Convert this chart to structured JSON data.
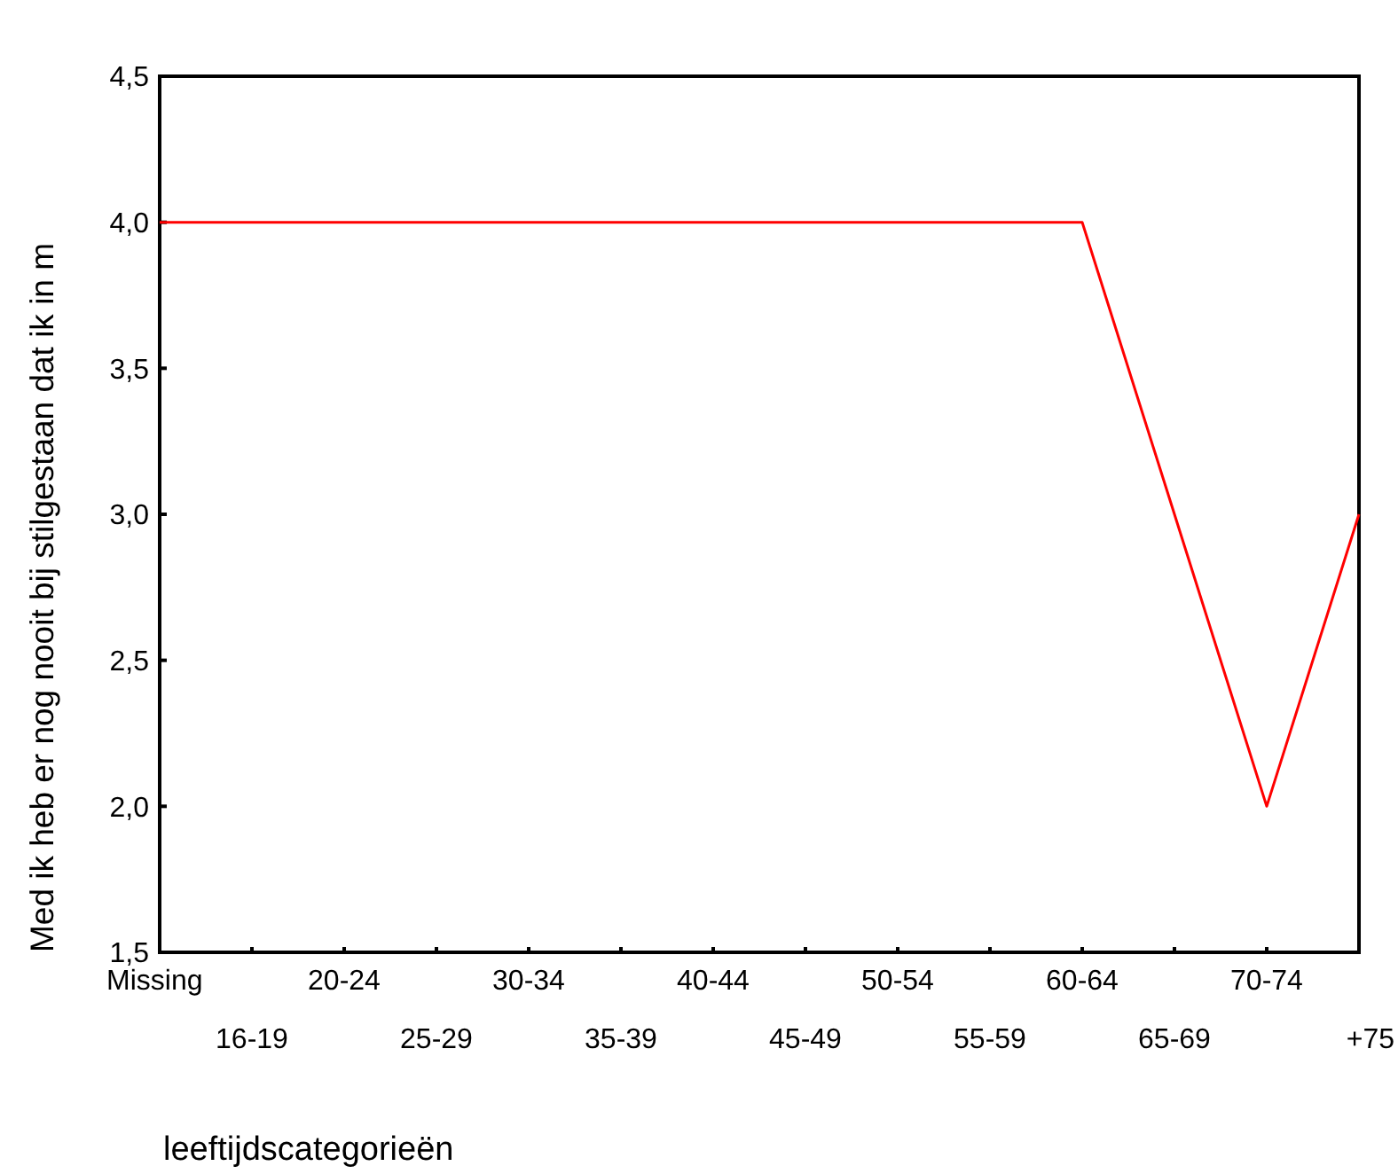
{
  "chart_data": {
    "type": "line",
    "xlabel": "leeftijdscategorieën",
    "ylabel": "Med ik heb er nog nooit bij stilgestaan dat ik in m",
    "categories": [
      "Missing",
      "16-19",
      "20-24",
      "25-29",
      "30-34",
      "35-39",
      "40-44",
      "45-49",
      "50-54",
      "55-59",
      "60-64",
      "65-69",
      "70-74",
      "+75"
    ],
    "series": [
      {
        "color": "#ff0000",
        "values": [
          4,
          4,
          4,
          4,
          4,
          4,
          4,
          4,
          4,
          4,
          4,
          3,
          2,
          3
        ]
      }
    ],
    "ylim": [
      1.5,
      4.5
    ],
    "yticks": [
      {
        "value": 1.5,
        "label": "1,5"
      },
      {
        "value": 2,
        "label": "2,0"
      },
      {
        "value": 2.5,
        "label": "2,5"
      },
      {
        "value": 3,
        "label": "3,0"
      },
      {
        "value": 3.5,
        "label": "3,5"
      },
      {
        "value": 4,
        "label": "4,0"
      },
      {
        "value": 4.5,
        "label": "4,5"
      }
    ],
    "grid": false,
    "marker": "none",
    "line_style": "solid"
  }
}
